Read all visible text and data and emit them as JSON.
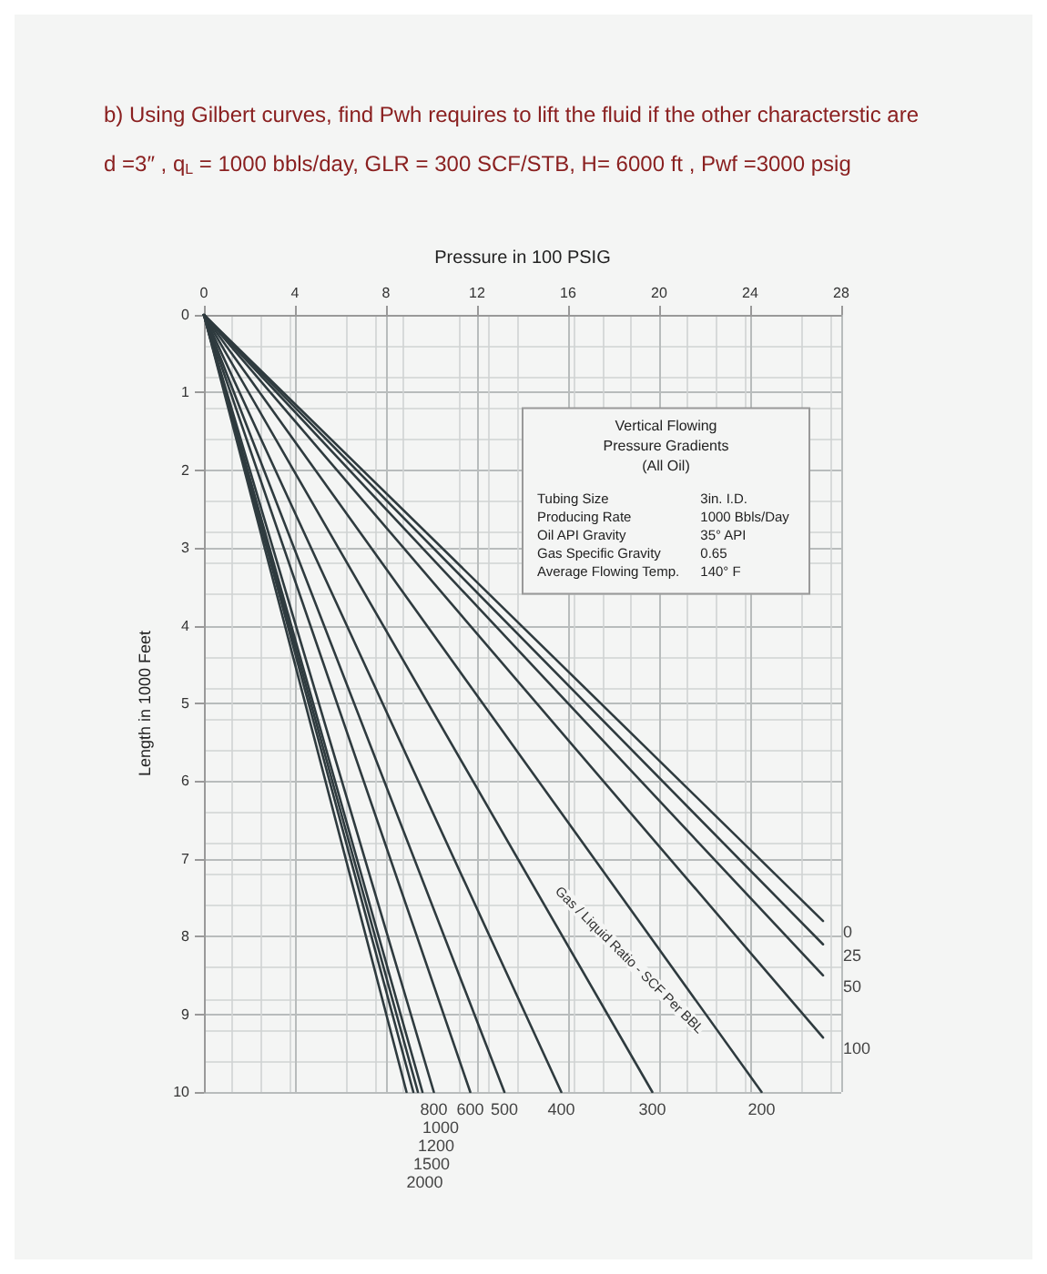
{
  "chart_data": {
    "type": "line",
    "title": "b) Using Gilbert curves, find Pwh requires to lift the fluid if the other characterstic are",
    "subtitle": "d =3″ , q$_{L}$ = 1000 bbls/day, GLR = 300 SCF/STB, H= 6000 ft , Pwf =3000 psig",
    "xlabel": "Pressure in 100 PSIG",
    "ylabel": "Length in 1000 Feet",
    "xlim": [
      0,
      28
    ],
    "xticks": [
      0,
      4,
      8,
      12,
      16,
      20,
      24,
      28
    ],
    "ylim": [
      10,
      0
    ],
    "yticks": [
      0,
      1,
      2,
      3,
      4,
      5,
      6,
      7,
      8,
      9,
      10
    ],
    "grid": true,
    "annotations": [
      "Vertical Flowing",
      "Pressure Gradients",
      "(All Oil)",
      "Tubing Size",
      "3in. I.D.",
      "Producing Rate",
      "1000 Bbls/Day",
      "Oil API Gravity",
      "35° API",
      "Gas Specific Gravity",
      "0.65",
      "Average Flowing Temp.",
      "140° F",
      "Gas / Liquid Ratio - SCF Per BBL"
    ],
    "series": [
      {
        "name": "0",
        "color": "#2f3b3f",
        "x": [
          0,
          27.2
        ],
        "values": [
          0,
          7.8
        ]
      },
      {
        "name": "25",
        "color": "#2f3b3f",
        "x": [
          0,
          27.2
        ],
        "values": [
          0,
          8.1
        ]
      },
      {
        "name": "50",
        "color": "#2f3b3f",
        "x": [
          0,
          27.2
        ],
        "values": [
          0,
          8.5
        ]
      },
      {
        "name": "100",
        "color": "#2f3b3f",
        "x": [
          0,
          27.2
        ],
        "values": [
          0,
          9.3
        ]
      },
      {
        "name": "200",
        "color": "#2f3b3f",
        "x": [
          0,
          24.5
        ],
        "values": [
          0,
          10
        ]
      },
      {
        "name": "300",
        "color": "#2f3b3f",
        "x": [
          0,
          19.7
        ],
        "values": [
          0,
          10
        ]
      },
      {
        "name": "400",
        "color": "#2f3b3f",
        "x": [
          0,
          15.7
        ],
        "values": [
          0,
          10
        ]
      },
      {
        "name": "500",
        "color": "#2f3b3f",
        "x": [
          0,
          13.2
        ],
        "values": [
          0,
          10
        ]
      },
      {
        "name": "600",
        "color": "#2f3b3f",
        "x": [
          0,
          11.7
        ],
        "values": [
          0,
          10
        ]
      },
      {
        "name": "800",
        "color": "#2f3b3f",
        "x": [
          0,
          10.1
        ],
        "values": [
          0,
          10
        ]
      },
      {
        "name": "1000",
        "color": "#2f3b3f",
        "x": [
          0,
          9.6
        ],
        "values": [
          0,
          10
        ]
      },
      {
        "name": "1200",
        "color": "#2f3b3f",
        "x": [
          0,
          9.4
        ],
        "values": [
          0,
          10
        ]
      },
      {
        "name": "1500",
        "color": "#2f3b3f",
        "x": [
          0,
          9.2
        ],
        "values": [
          0,
          10
        ]
      },
      {
        "name": "2000",
        "color": "#2f3b3f",
        "x": [
          0,
          8.9
        ],
        "values": [
          0,
          10
        ]
      }
    ]
  }
}
